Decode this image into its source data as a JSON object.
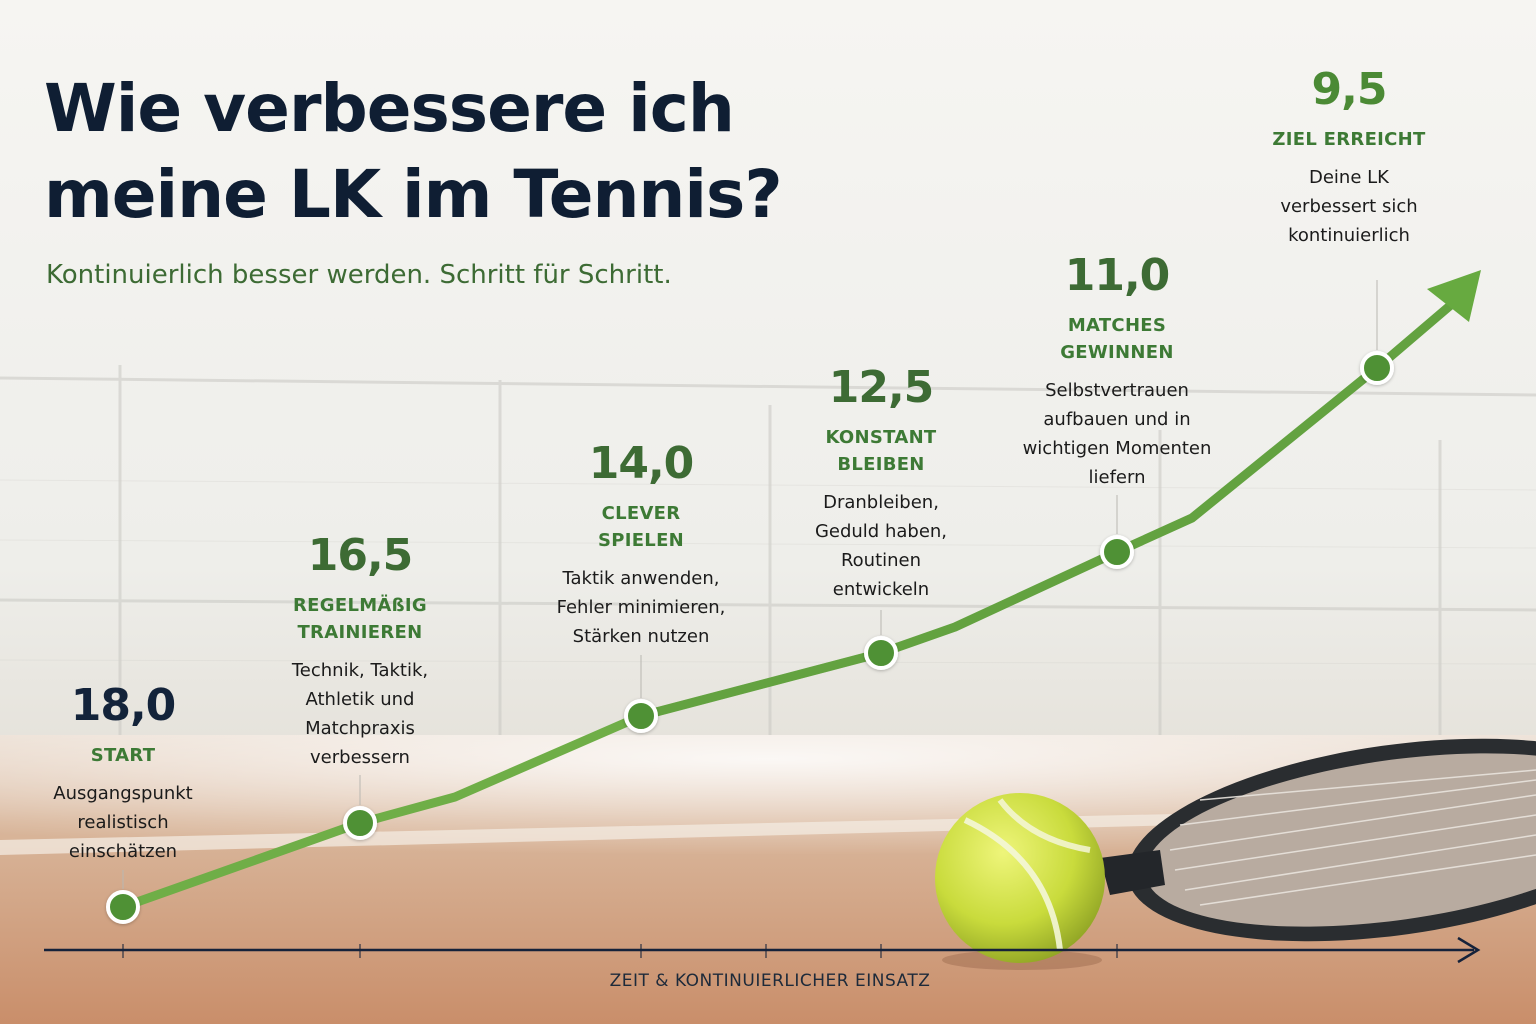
{
  "header": {
    "title_line1": "Wie verbessere ich",
    "title_line2": "meine LK im Tennis?",
    "subtitle": "Kontinuierlich besser werden. Schritt für Schritt."
  },
  "chart_data": {
    "type": "line",
    "xlabel": "ZEIT & KONTINUIERLICHER EINSATZ",
    "ylabel": "",
    "y_direction": "reversed",
    "grid": false,
    "legend": "none",
    "colors": {
      "line": "#5a9c3c",
      "marker": "#4f9136",
      "axis": "#15223a",
      "value_dark": "#13233a",
      "value_green": "#3d6b34"
    },
    "points": [
      {
        "value": "18,0",
        "y": 18.0,
        "label": "START",
        "desc": [
          "Ausgangspunkt",
          "realistisch",
          "einschätzen"
        ]
      },
      {
        "value": "16,5",
        "y": 16.5,
        "label": [
          "REGELMÄßIG",
          "TRAINIEREN"
        ],
        "desc": [
          "Technik, Taktik,",
          "Athletik und",
          "Matchpraxis",
          "verbessern"
        ]
      },
      {
        "value": "14,0",
        "y": 14.0,
        "label": [
          "CLEVER",
          "SPIELEN"
        ],
        "desc": [
          "Taktik anwenden,",
          "Fehler minimieren,",
          "Stärken nutzen"
        ]
      },
      {
        "value": "12,5",
        "y": 12.5,
        "label": [
          "KONSTANT",
          "BLEIBEN"
        ],
        "desc": [
          "Dranbleiben,",
          "Geduld haben,",
          "Routinen",
          "entwickeln"
        ]
      },
      {
        "value": "11,0",
        "y": 11.0,
        "label": [
          "MATCHES",
          "GEWINNEN"
        ],
        "desc": [
          "Selbstvertrauen",
          "aufbauen und in",
          "wichtigen Momenten",
          "liefern"
        ]
      },
      {
        "value": "9,5",
        "y": 9.5,
        "label": "ZIEL ERREICHT",
        "desc": [
          "Deine LK",
          "verbessert sich",
          "kontinuierlich"
        ]
      }
    ]
  }
}
